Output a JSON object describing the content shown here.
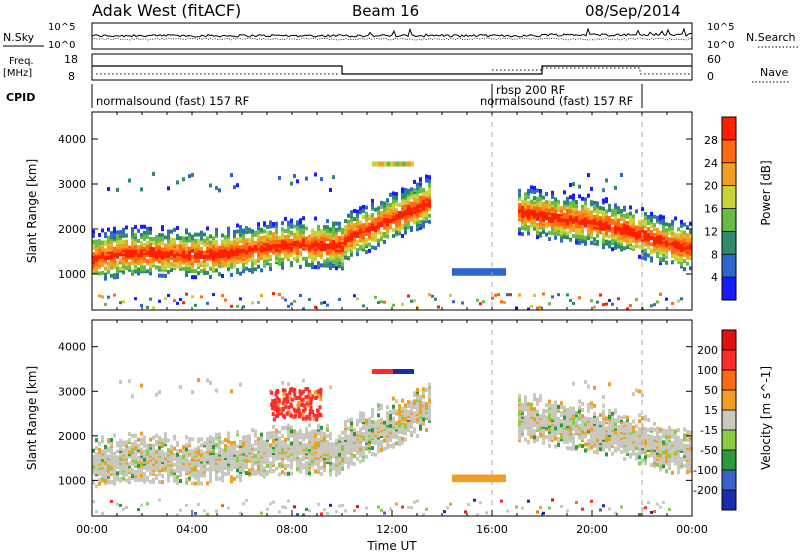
{
  "header": {
    "station": "Adak West (fitACF)",
    "beam": "Beam 16",
    "date": "08/Sep/2014"
  },
  "top_panel": {
    "left_label": "N.Sky",
    "left_ticks": [
      "10^5",
      "10^0"
    ],
    "right_ticks": [
      "10^5",
      "10^0"
    ],
    "right_label": "N.Search"
  },
  "freq_panel": {
    "left_label_1": "Freq.",
    "left_label_2": "[MHz]",
    "left_ticks": [
      "18",
      "8"
    ],
    "right_ticks": [
      "60",
      "0"
    ],
    "right_label": "Nave",
    "cpid_label": "CPID",
    "cpid_segments": [
      "normalsound (fast) 157 RF",
      "rbsp 200 RF",
      "normalsound (fast) 157 RF"
    ]
  },
  "chart_data": [
    {
      "type": "heatmap",
      "quantity": "Power",
      "ylabel": "Slant Range [km]",
      "yticks": [
        "1000",
        "2000",
        "3000",
        "4000"
      ],
      "ylim": [
        200,
        4600
      ],
      "xlim": [
        0,
        24
      ],
      "colorbar": {
        "label": "Power [dB]",
        "ticks": [
          "4",
          "8",
          "12",
          "16",
          "20",
          "24",
          "28"
        ],
        "colors": [
          "#1a1aff",
          "#2f66cc",
          "#2f8a6a",
          "#66bb44",
          "#c9d23a",
          "#f0a020",
          "#ff6a10",
          "#ff2000"
        ]
      }
    },
    {
      "type": "heatmap",
      "quantity": "Velocity",
      "ylabel": "Slant Range [km]",
      "yticks": [
        "1000",
        "2000",
        "3000",
        "4000"
      ],
      "ylim": [
        200,
        4600
      ],
      "xlim": [
        0,
        24
      ],
      "xticks": [
        "00:00",
        "04:00",
        "08:00",
        "12:00",
        "16:00",
        "20:00",
        "00:00"
      ],
      "xlabel": "Time UT",
      "colorbar": {
        "label": "Velocity [m s^-1]",
        "ticks": [
          "200",
          "100",
          "50",
          "15",
          "-15",
          "-50",
          "-100",
          "-200"
        ],
        "colors": [
          "#1a2aa8",
          "#3a62c8",
          "#2a9a3a",
          "#88cc44",
          "#c8c8c0",
          "#f0a020",
          "#ff6a10",
          "#ff2a2a",
          "#e01010"
        ]
      }
    }
  ]
}
